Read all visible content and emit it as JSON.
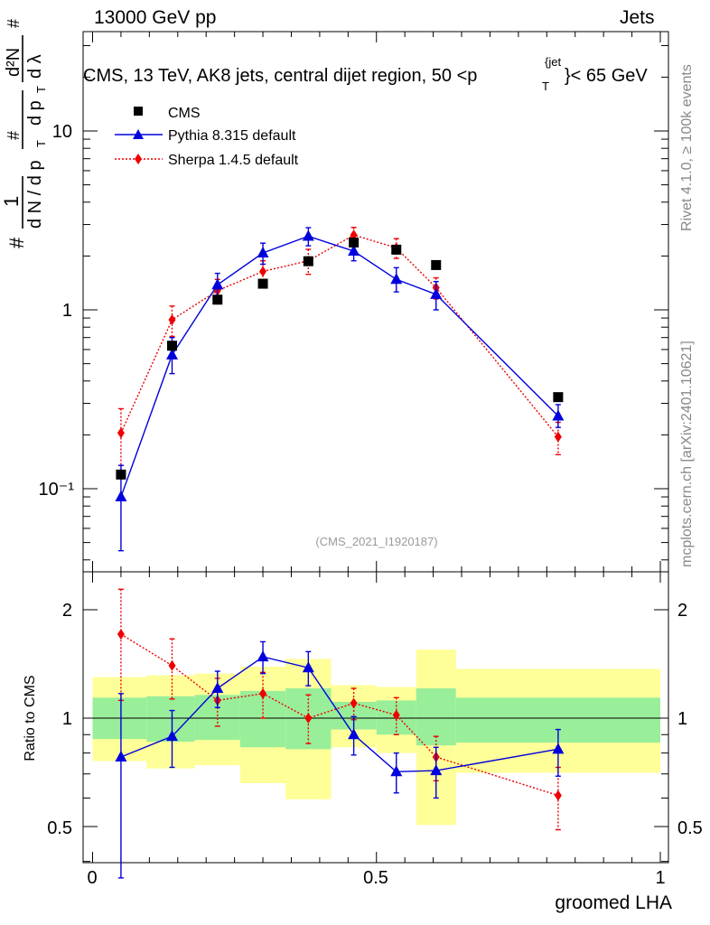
{
  "header": {
    "left": "13000 GeV pp",
    "right": "Jets"
  },
  "side_labels": {
    "rivet": "Rivet 4.1.0, ≥ 100k events",
    "mcplots": "mcplots.cern.ch [arXiv:2401.10621]"
  },
  "chart_data": {
    "type": "line",
    "title": "CMS, 13 TeV, AK8 jets, central dijet region, 50 <p_T^{jet}< 65 GeV",
    "title_parts": {
      "pre": "CMS, 13 TeV, AK8 jets, central dijet region, 50 <p",
      "sup": "{jet",
      "sub": "T",
      "post": "}< 65 GeV"
    },
    "watermark": "(CMS_2021_I1920187)",
    "xlabel": "groomed LHA",
    "xlim": [
      0,
      1
    ],
    "x_ticks": [
      "0",
      "0.5",
      "1"
    ],
    "main_panel": {
      "yscale": "log",
      "ylim": [
        0.035,
        45
      ],
      "ylabel_parts": {
        "hash1": "#",
        "one": "1",
        "dN": "d N / d p",
        "T": "T",
        "hash2": "#",
        "dpT": "d p",
        "T2": "T",
        "d2N": "d²N",
        "dlambda": "d λ",
        "hash3": "#"
      },
      "y_ticks": [
        "10⁻¹",
        "1",
        "10"
      ],
      "legend": [
        {
          "label": "CMS",
          "color": "#000000",
          "marker": "square"
        },
        {
          "label": "Pythia 8.315 default",
          "color": "#0000dd",
          "marker": "triangle"
        },
        {
          "label": "Sherpa 1.4.5 default",
          "color": "#ee0000",
          "marker": "diamond"
        }
      ],
      "series": [
        {
          "name": "CMS",
          "color": "#000000",
          "x": [
            0.05,
            0.14,
            0.22,
            0.3,
            0.38,
            0.46,
            0.535,
            0.605,
            0.82
          ],
          "y": [
            0.12,
            0.63,
            1.14,
            1.4,
            1.87,
            2.38,
            2.17,
            1.78,
            0.325
          ]
        },
        {
          "name": "Pythia 8.315 default",
          "color": "#0000dd",
          "x": [
            0.05,
            0.14,
            0.22,
            0.3,
            0.38,
            0.46,
            0.535,
            0.605,
            0.82
          ],
          "y": [
            0.09,
            0.56,
            1.38,
            2.08,
            2.58,
            2.13,
            1.48,
            1.22,
            0.255
          ],
          "err_lo": [
            0.045,
            0.44,
            1.2,
            1.8,
            2.28,
            1.88,
            1.26,
            1.0,
            0.22
          ],
          "err_hi": [
            0.135,
            0.7,
            1.6,
            2.36,
            2.88,
            2.38,
            1.72,
            1.44,
            0.295
          ]
        },
        {
          "name": "Sherpa 1.4.5 default",
          "color": "#ee0000",
          "x": [
            0.05,
            0.14,
            0.22,
            0.3,
            0.38,
            0.46,
            0.535,
            0.605,
            0.82
          ],
          "y": [
            0.205,
            0.88,
            1.28,
            1.64,
            1.88,
            2.62,
            2.22,
            1.33,
            0.195
          ],
          "err_lo": [
            0.135,
            0.71,
            1.08,
            1.4,
            1.58,
            2.35,
            1.94,
            1.15,
            0.155
          ],
          "err_hi": [
            0.28,
            1.05,
            1.48,
            1.88,
            2.18,
            2.89,
            2.5,
            1.51,
            0.235
          ]
        }
      ]
    },
    "ratio_panel": {
      "ylabel": "Ratio to CMS",
      "yscale": "log",
      "ylim": [
        0.4,
        2.4
      ],
      "y_ticks": [
        "0.5",
        "1",
        "2"
      ],
      "bands": [
        {
          "x0": 0.0,
          "x1": 0.095,
          "y1_lo": 0.875,
          "y1_hi": 1.14,
          "y2_lo": 0.76,
          "y2_hi": 1.3
        },
        {
          "x0": 0.095,
          "x1": 0.18,
          "y1_lo": 0.86,
          "y1_hi": 1.15,
          "y2_lo": 0.725,
          "y2_hi": 1.315
        },
        {
          "x0": 0.18,
          "x1": 0.26,
          "y1_lo": 0.87,
          "y1_hi": 1.16,
          "y2_lo": 0.74,
          "y2_hi": 1.33
        },
        {
          "x0": 0.26,
          "x1": 0.34,
          "y1_lo": 0.83,
          "y1_hi": 1.19,
          "y2_lo": 0.66,
          "y2_hi": 1.39
        },
        {
          "x0": 0.34,
          "x1": 0.42,
          "y1_lo": 0.82,
          "y1_hi": 1.21,
          "y2_lo": 0.595,
          "y2_hi": 1.46
        },
        {
          "x0": 0.42,
          "x1": 0.5,
          "y1_lo": 0.93,
          "y1_hi": 1.11,
          "y2_lo": 0.83,
          "y2_hi": 1.235
        },
        {
          "x0": 0.5,
          "x1": 0.57,
          "y1_lo": 0.9,
          "y1_hi": 1.12,
          "y2_lo": 0.8,
          "y2_hi": 1.22
        },
        {
          "x0": 0.57,
          "x1": 0.64,
          "y1_lo": 0.84,
          "y1_hi": 1.21,
          "y2_lo": 0.505,
          "y2_hi": 1.55
        },
        {
          "x0": 0.64,
          "x1": 1.0,
          "y1_lo": 0.855,
          "y1_hi": 1.14,
          "y2_lo": 0.705,
          "y2_hi": 1.37
        }
      ],
      "series": [
        {
          "name": "Pythia 8.315 default",
          "color": "#0000dd",
          "x": [
            0.05,
            0.14,
            0.22,
            0.3,
            0.38,
            0.46,
            0.535,
            0.605,
            0.82
          ],
          "y": [
            0.78,
            0.89,
            1.21,
            1.48,
            1.38,
            0.9,
            0.71,
            0.715,
            0.82
          ],
          "err_lo": [
            0.36,
            0.73,
            1.07,
            1.33,
            1.23,
            0.79,
            0.62,
            0.6,
            0.69
          ],
          "err_hi": [
            1.17,
            1.05,
            1.35,
            1.63,
            1.53,
            1.01,
            0.8,
            0.83,
            0.93
          ]
        },
        {
          "name": "Sherpa 1.4.5 default",
          "color": "#ee0000",
          "x": [
            0.05,
            0.14,
            0.22,
            0.3,
            0.38,
            0.46,
            0.535,
            0.605,
            0.82
          ],
          "y": [
            1.71,
            1.4,
            1.12,
            1.17,
            1.0,
            1.1,
            1.02,
            0.78,
            0.61
          ],
          "err_lo": [
            1.12,
            1.13,
            0.95,
            1.0,
            0.85,
            0.99,
            0.9,
            0.67,
            0.49
          ],
          "err_hi": [
            2.28,
            1.66,
            1.29,
            1.34,
            1.16,
            1.21,
            1.14,
            0.89,
            0.73
          ]
        }
      ]
    }
  }
}
